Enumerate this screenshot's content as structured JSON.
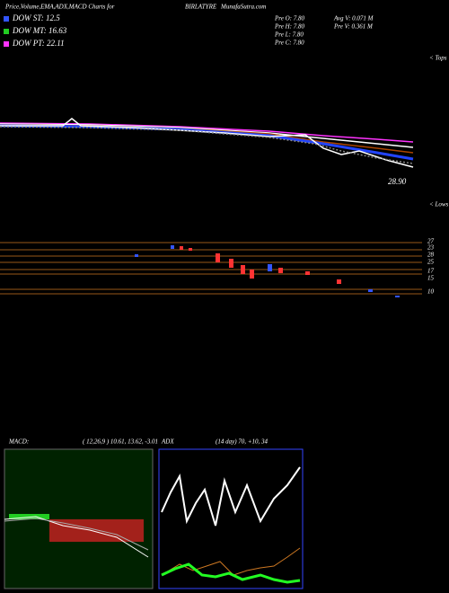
{
  "header": {
    "title": "Price,Volume,EMA,ADX,MACD Charts for",
    "symbol": "BIRLATYRE",
    "site": "MunafaSutra.com"
  },
  "legend": [
    "DOW ST: 12.5",
    "DOW MT: 16.63",
    "DOW PT: 22.11"
  ],
  "prev": [
    "Pre O: 7.80",
    "Pre H: 7.80",
    "Pre L: 7.80",
    "Pre C: 7.80"
  ],
  "volume": [
    "Avg V: 0.071 M",
    "Pre V: 0.361 M"
  ],
  "price_label": "28.90",
  "tops": "< Tops",
  "lows": "< Lows",
  "axis_labels": [
    "27",
    "23",
    "28",
    "25",
    "17",
    "15",
    "10"
  ],
  "macd": {
    "label": "MACD:",
    "values": "( 12,26,9 ) 10.61, 13.62, -3.01"
  },
  "adx": {
    "label": "ADX",
    "values": "(14 day) 70, +10, 34"
  }
}
